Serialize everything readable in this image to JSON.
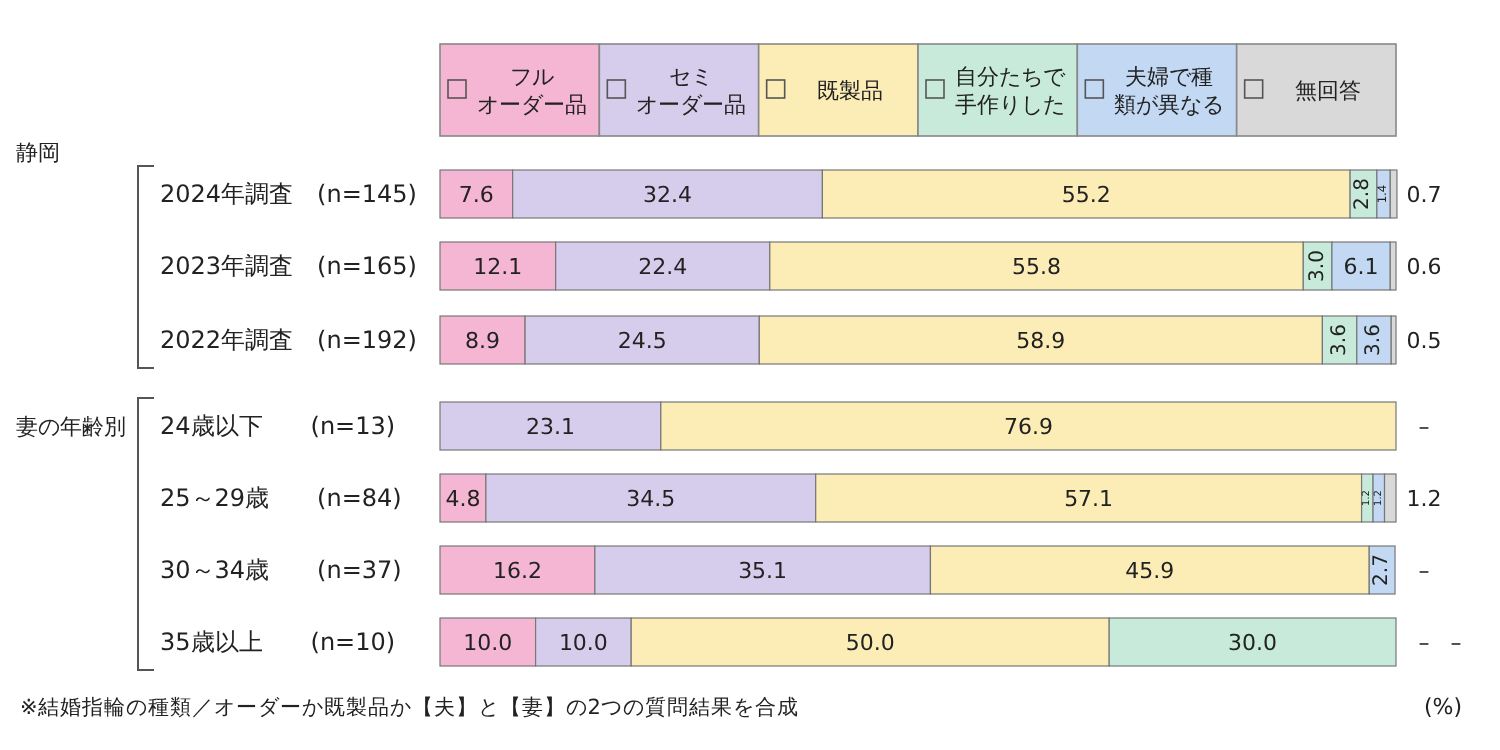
{
  "chart_data": {
    "type": "bar",
    "orientation": "horizontal",
    "stacked": true,
    "legend": "top",
    "categories": [
      "2024年調査　(n=145)",
      "2023年調査　(n=165)",
      "2022年調査　(n=192)",
      "24歳以下　　(n=13)",
      "25～29歳　　(n=84)",
      "30～34歳　　(n=37)",
      "35歳以上　　(n=10)"
    ],
    "xlim": [
      0,
      100
    ],
    "series": [
      {
        "name": "フルオーダー品",
        "color": "#f4b6d2",
        "values": [
          7.6,
          12.1,
          8.9,
          0,
          4.8,
          16.2,
          10.0
        ],
        "value_labels": [
          "7.6",
          "12.1",
          "8.9",
          null,
          "4.8",
          "16.2",
          "10.0"
        ]
      },
      {
        "name": "セミオーダー品",
        "color": "#d6cdec",
        "values": [
          32.4,
          22.4,
          24.5,
          23.1,
          34.5,
          35.1,
          10.0
        ],
        "value_labels": [
          "32.4",
          "22.4",
          "24.5",
          "23.1",
          "34.5",
          "35.1",
          "10.0"
        ]
      },
      {
        "name": "既製品",
        "color": "#fbedb5",
        "values": [
          55.2,
          55.8,
          58.9,
          76.9,
          57.1,
          45.9,
          50.0
        ],
        "value_labels": [
          "55.2",
          "55.8",
          "58.9",
          "76.9",
          "57.1",
          "45.9",
          "50.0"
        ]
      },
      {
        "name": "自分たちで手作りした",
        "color": "#c8eadb",
        "values": [
          2.8,
          3.0,
          3.6,
          0,
          1.2,
          0,
          30.0
        ],
        "value_labels": [
          "2.8",
          "3.0",
          "3.6",
          null,
          "1.2",
          null,
          "30.0"
        ]
      },
      {
        "name": "夫婦で種類が異なる",
        "color": "#c3d9f3",
        "values": [
          1.4,
          6.1,
          3.6,
          0,
          1.2,
          2.7,
          0
        ],
        "value_labels": [
          "1.4",
          "6.1",
          "3.6",
          null,
          "1.2",
          "2.7",
          "–"
        ]
      },
      {
        "name": "無回答",
        "color": "#d9d9d9",
        "values": [
          0.7,
          0.6,
          0.5,
          0,
          1.2,
          0,
          0
        ],
        "value_labels": [
          "0.7",
          "0.6",
          "0.5",
          "–",
          "1.2",
          "–",
          "–"
        ]
      }
    ],
    "annotations": [
      "静岡",
      "妻の年齢別",
      "※結婚指輪の種類／オーダーか既製品か【夫】と【妻】の2つの質問結果を合成",
      "(%)"
    ]
  }
}
